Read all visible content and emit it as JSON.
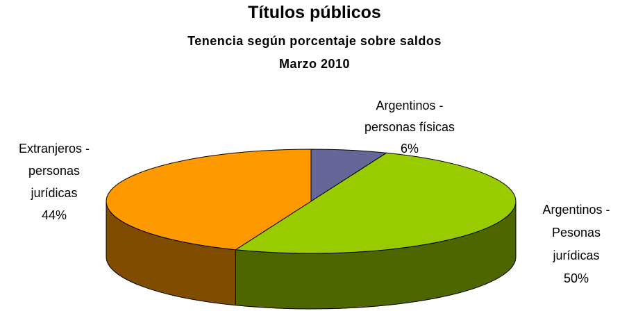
{
  "chart_data": {
    "type": "pie",
    "title": "Títulos públicos",
    "subtitle": "Tenencia según porcentaje sobre saldos",
    "date": "Marzo 2010",
    "categories": [
      "Argentinos - personas físicas",
      "Argentinos - Pesonas jurídicas",
      "Extranjeros - personas jurídicas"
    ],
    "values": [
      6,
      50,
      44
    ],
    "value_labels": [
      "6%",
      "50%",
      "44%"
    ],
    "colors": [
      "#666699",
      "#99cc00",
      "#ff9900"
    ],
    "three_d": true
  }
}
